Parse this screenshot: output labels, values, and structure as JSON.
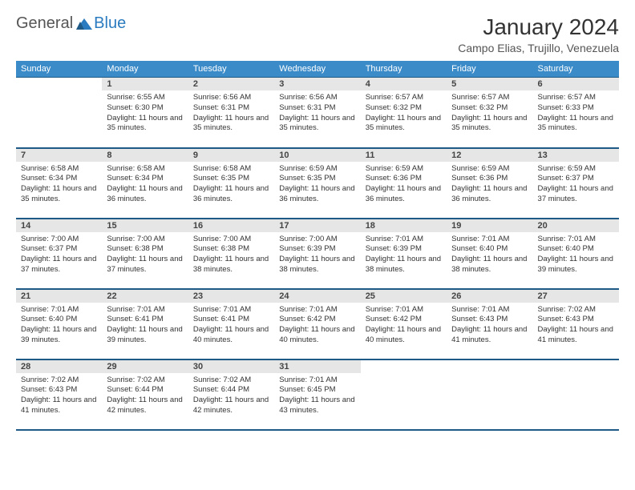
{
  "logo": {
    "part1": "General",
    "part2": "Blue"
  },
  "title": "January 2024",
  "location": "Campo Elias, Trujillo, Venezuela",
  "colors": {
    "header_bg": "#3b8bc9",
    "header_border": "#1f5a87",
    "daynum_bg": "#e6e6e6",
    "page_bg": "#ffffff",
    "logo_accent": "#2a7bbf",
    "logo_gray": "#555555"
  },
  "weekdays": [
    "Sunday",
    "Monday",
    "Tuesday",
    "Wednesday",
    "Thursday",
    "Friday",
    "Saturday"
  ],
  "weeks": [
    [
      null,
      {
        "n": "1",
        "sr": "6:55 AM",
        "ss": "6:30 PM",
        "dl": "11 hours and 35 minutes."
      },
      {
        "n": "2",
        "sr": "6:56 AM",
        "ss": "6:31 PM",
        "dl": "11 hours and 35 minutes."
      },
      {
        "n": "3",
        "sr": "6:56 AM",
        "ss": "6:31 PM",
        "dl": "11 hours and 35 minutes."
      },
      {
        "n": "4",
        "sr": "6:57 AM",
        "ss": "6:32 PM",
        "dl": "11 hours and 35 minutes."
      },
      {
        "n": "5",
        "sr": "6:57 AM",
        "ss": "6:32 PM",
        "dl": "11 hours and 35 minutes."
      },
      {
        "n": "6",
        "sr": "6:57 AM",
        "ss": "6:33 PM",
        "dl": "11 hours and 35 minutes."
      }
    ],
    [
      {
        "n": "7",
        "sr": "6:58 AM",
        "ss": "6:34 PM",
        "dl": "11 hours and 35 minutes."
      },
      {
        "n": "8",
        "sr": "6:58 AM",
        "ss": "6:34 PM",
        "dl": "11 hours and 36 minutes."
      },
      {
        "n": "9",
        "sr": "6:58 AM",
        "ss": "6:35 PM",
        "dl": "11 hours and 36 minutes."
      },
      {
        "n": "10",
        "sr": "6:59 AM",
        "ss": "6:35 PM",
        "dl": "11 hours and 36 minutes."
      },
      {
        "n": "11",
        "sr": "6:59 AM",
        "ss": "6:36 PM",
        "dl": "11 hours and 36 minutes."
      },
      {
        "n": "12",
        "sr": "6:59 AM",
        "ss": "6:36 PM",
        "dl": "11 hours and 36 minutes."
      },
      {
        "n": "13",
        "sr": "6:59 AM",
        "ss": "6:37 PM",
        "dl": "11 hours and 37 minutes."
      }
    ],
    [
      {
        "n": "14",
        "sr": "7:00 AM",
        "ss": "6:37 PM",
        "dl": "11 hours and 37 minutes."
      },
      {
        "n": "15",
        "sr": "7:00 AM",
        "ss": "6:38 PM",
        "dl": "11 hours and 37 minutes."
      },
      {
        "n": "16",
        "sr": "7:00 AM",
        "ss": "6:38 PM",
        "dl": "11 hours and 38 minutes."
      },
      {
        "n": "17",
        "sr": "7:00 AM",
        "ss": "6:39 PM",
        "dl": "11 hours and 38 minutes."
      },
      {
        "n": "18",
        "sr": "7:01 AM",
        "ss": "6:39 PM",
        "dl": "11 hours and 38 minutes."
      },
      {
        "n": "19",
        "sr": "7:01 AM",
        "ss": "6:40 PM",
        "dl": "11 hours and 38 minutes."
      },
      {
        "n": "20",
        "sr": "7:01 AM",
        "ss": "6:40 PM",
        "dl": "11 hours and 39 minutes."
      }
    ],
    [
      {
        "n": "21",
        "sr": "7:01 AM",
        "ss": "6:40 PM",
        "dl": "11 hours and 39 minutes."
      },
      {
        "n": "22",
        "sr": "7:01 AM",
        "ss": "6:41 PM",
        "dl": "11 hours and 39 minutes."
      },
      {
        "n": "23",
        "sr": "7:01 AM",
        "ss": "6:41 PM",
        "dl": "11 hours and 40 minutes."
      },
      {
        "n": "24",
        "sr": "7:01 AM",
        "ss": "6:42 PM",
        "dl": "11 hours and 40 minutes."
      },
      {
        "n": "25",
        "sr": "7:01 AM",
        "ss": "6:42 PM",
        "dl": "11 hours and 40 minutes."
      },
      {
        "n": "26",
        "sr": "7:01 AM",
        "ss": "6:43 PM",
        "dl": "11 hours and 41 minutes."
      },
      {
        "n": "27",
        "sr": "7:02 AM",
        "ss": "6:43 PM",
        "dl": "11 hours and 41 minutes."
      }
    ],
    [
      {
        "n": "28",
        "sr": "7:02 AM",
        "ss": "6:43 PM",
        "dl": "11 hours and 41 minutes."
      },
      {
        "n": "29",
        "sr": "7:02 AM",
        "ss": "6:44 PM",
        "dl": "11 hours and 42 minutes."
      },
      {
        "n": "30",
        "sr": "7:02 AM",
        "ss": "6:44 PM",
        "dl": "11 hours and 42 minutes."
      },
      {
        "n": "31",
        "sr": "7:01 AM",
        "ss": "6:45 PM",
        "dl": "11 hours and 43 minutes."
      },
      null,
      null,
      null
    ]
  ],
  "labels": {
    "sunrise": "Sunrise:",
    "sunset": "Sunset:",
    "daylight": "Daylight:"
  }
}
